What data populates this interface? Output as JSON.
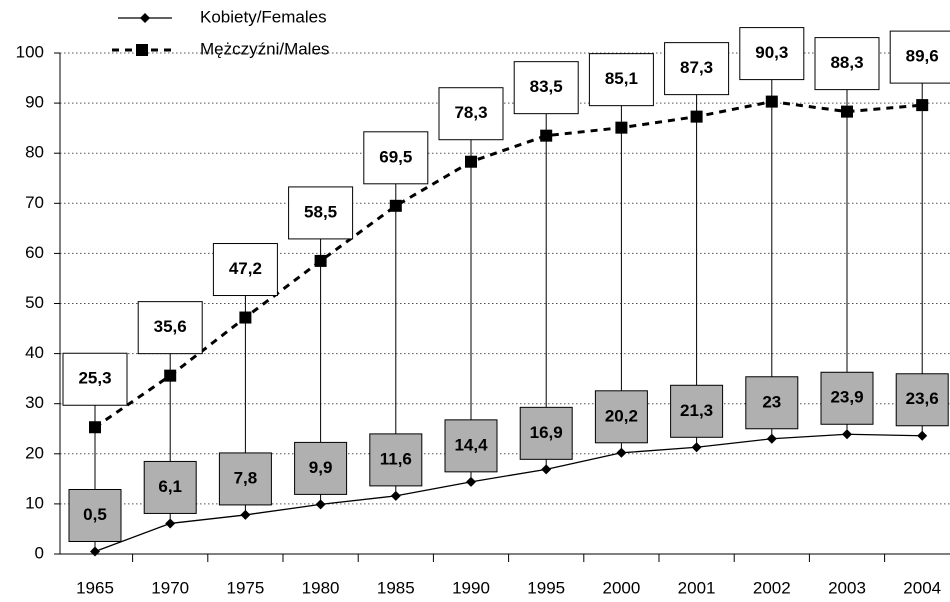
{
  "chart_data": {
    "type": "line",
    "categories": [
      "1965",
      "1970",
      "1975",
      "1980",
      "1985",
      "1990",
      "1995",
      "2000",
      "2001",
      "2002",
      "2003",
      "2004"
    ],
    "series": [
      {
        "name": "Kobiety/Females",
        "color": "#000000",
        "values": [
          0.5,
          6.1,
          7.8,
          9.9,
          11.6,
          14.4,
          16.9,
          20.2,
          21.3,
          23,
          23.9,
          23.6
        ],
        "value_labels": [
          "0,5",
          "6,1",
          "7,8",
          "9,9",
          "11,6",
          "14,4",
          "16,9",
          "20,2",
          "21,3",
          "23",
          "23,9",
          "23,6"
        ]
      },
      {
        "name": "Mężczyźni/Males",
        "color": "#000000",
        "values": [
          25.3,
          35.6,
          47.2,
          58.5,
          69.5,
          78.3,
          83.5,
          85.1,
          87.3,
          90.3,
          88.3,
          89.6
        ],
        "value_labels": [
          "25,3",
          "35,6",
          "47,2",
          "58,5",
          "69,5",
          "78,3",
          "83,5",
          "85,1",
          "87,3",
          "90,3",
          "88,3",
          "89,6"
        ]
      }
    ],
    "ylim": [
      0,
      100
    ],
    "yticks": [
      0,
      10,
      20,
      30,
      40,
      50,
      60,
      70,
      80,
      90,
      100
    ],
    "grid": true,
    "legend": "top-left"
  }
}
